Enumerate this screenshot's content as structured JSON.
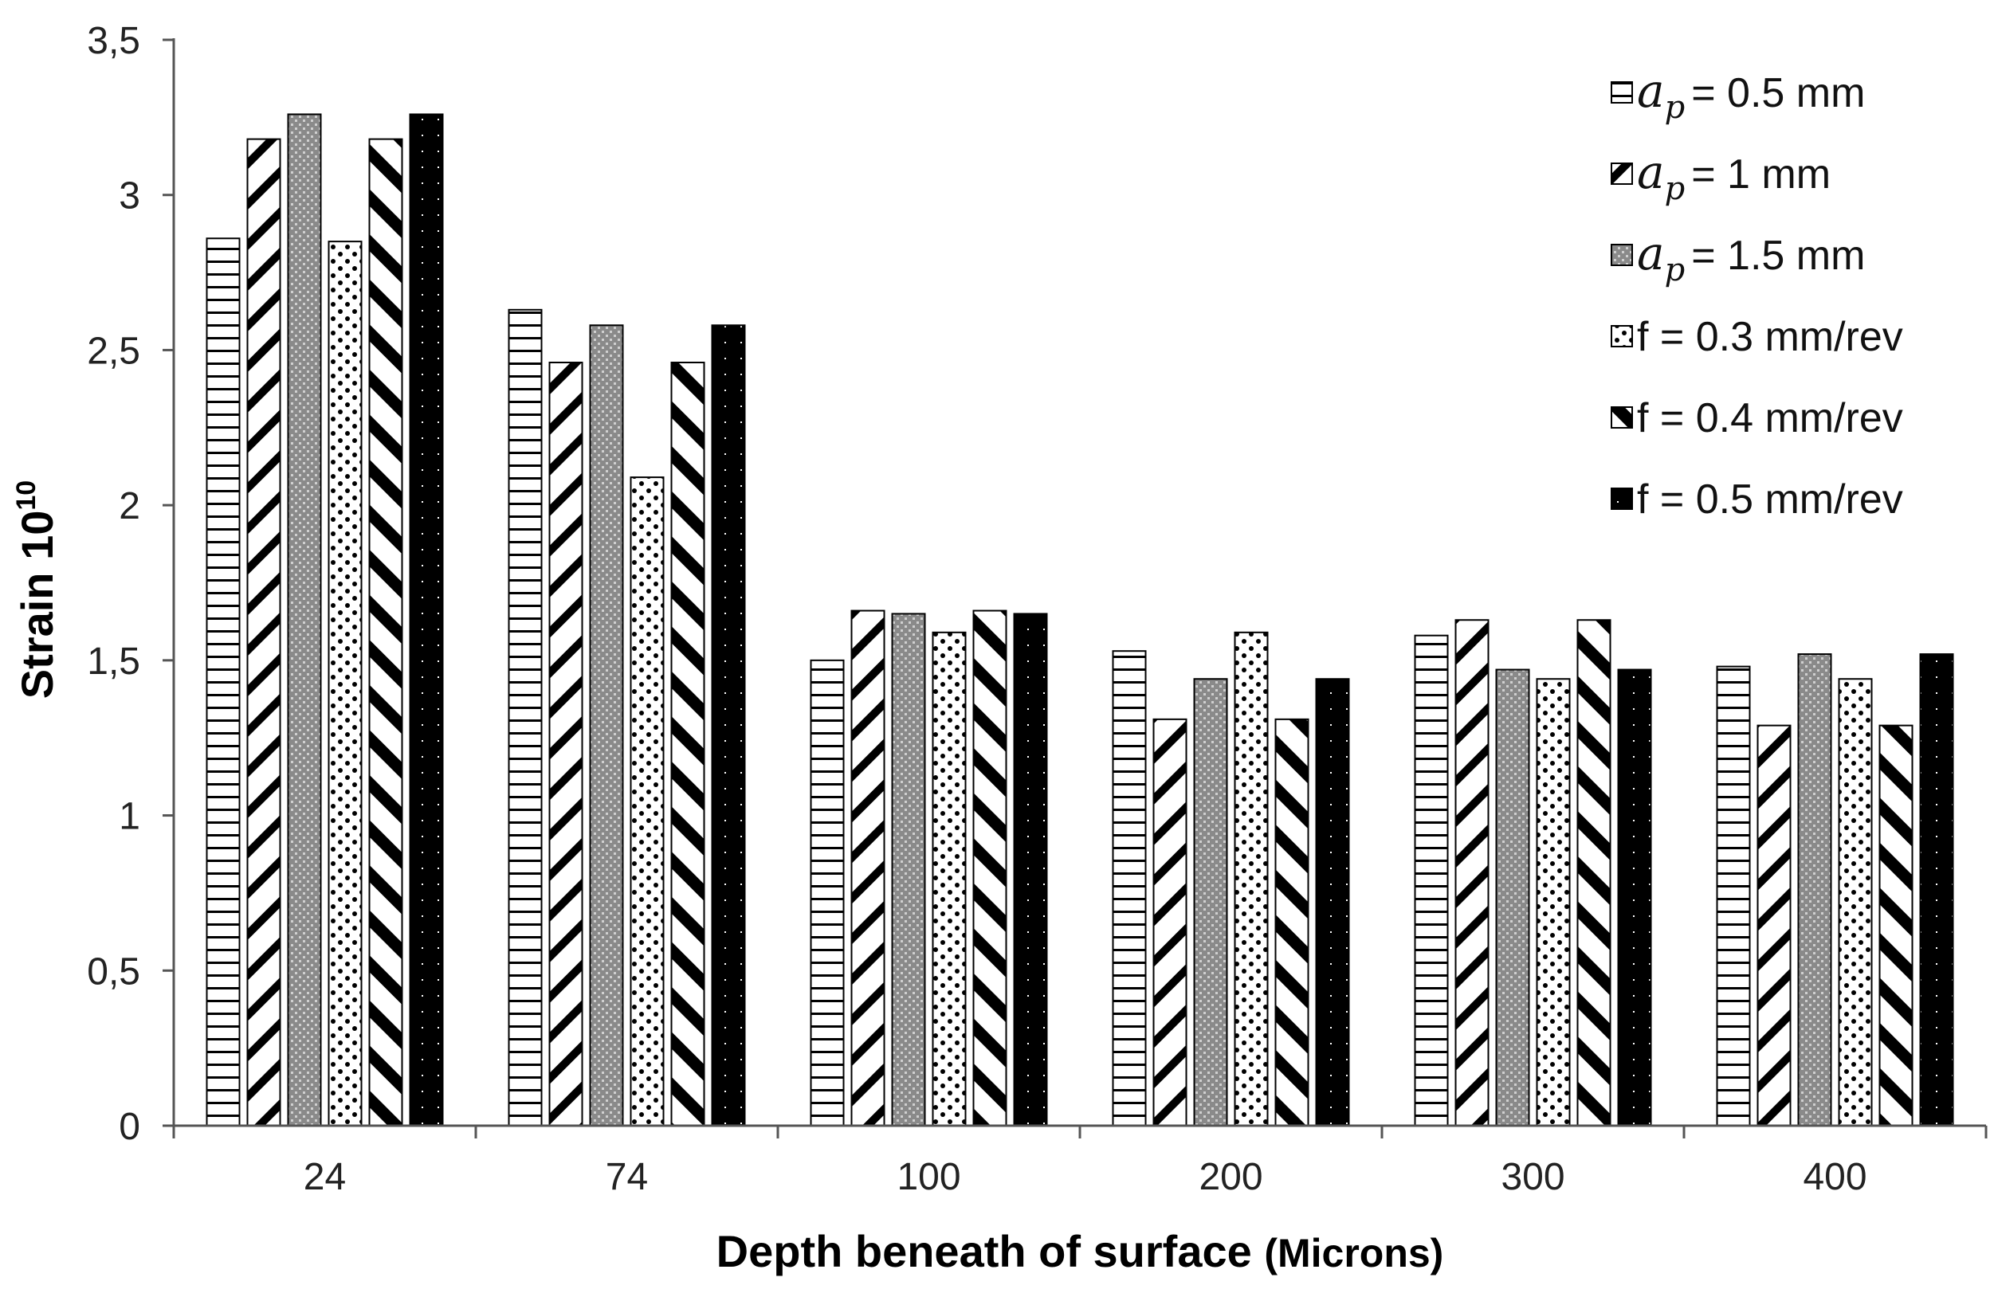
{
  "chart_data": {
    "type": "bar",
    "title": "",
    "xlabel": "Depth beneath of surface",
    "xlabel_unit": "(Microns)",
    "ylabel": "Strain 10",
    "ylabel_exponent": "10",
    "ylim": [
      0,
      3.5
    ],
    "yticks": [
      "0",
      "0,5",
      "1",
      "1,5",
      "2",
      "2,5",
      "3",
      "3,5"
    ],
    "categories": [
      "24",
      "74",
      "100",
      "200",
      "300",
      "400"
    ],
    "legend_position": "top-right",
    "grid": false,
    "series": [
      {
        "name": "= 0.5 mm",
        "symbol": "a",
        "subscript": "p",
        "pattern": "hstripes",
        "values": [
          2.86,
          2.63,
          1.5,
          1.53,
          1.58,
          1.48
        ]
      },
      {
        "name": "= 1 mm",
        "symbol": "a",
        "subscript": "p",
        "pattern": "diag-thin",
        "values": [
          3.18,
          2.46,
          1.66,
          1.31,
          1.63,
          1.29
        ]
      },
      {
        "name": "= 1.5 mm",
        "symbol": "a",
        "subscript": "p",
        "pattern": "grey-dots",
        "values": [
          3.26,
          2.58,
          1.65,
          1.44,
          1.47,
          1.52
        ]
      },
      {
        "name": "f = 0.3 mm/rev",
        "symbol": "",
        "subscript": "",
        "pattern": "dots",
        "values": [
          2.85,
          2.09,
          1.59,
          1.59,
          1.44,
          1.44
        ]
      },
      {
        "name": "f = 0.4 mm/rev",
        "symbol": "",
        "subscript": "",
        "pattern": "diag-thick",
        "values": [
          3.18,
          2.46,
          1.66,
          1.31,
          1.63,
          1.29
        ]
      },
      {
        "name": "f = 0.5 mm/rev",
        "symbol": "",
        "subscript": "",
        "pattern": "black",
        "values": [
          3.26,
          2.58,
          1.65,
          1.44,
          1.47,
          1.52
        ]
      }
    ]
  }
}
